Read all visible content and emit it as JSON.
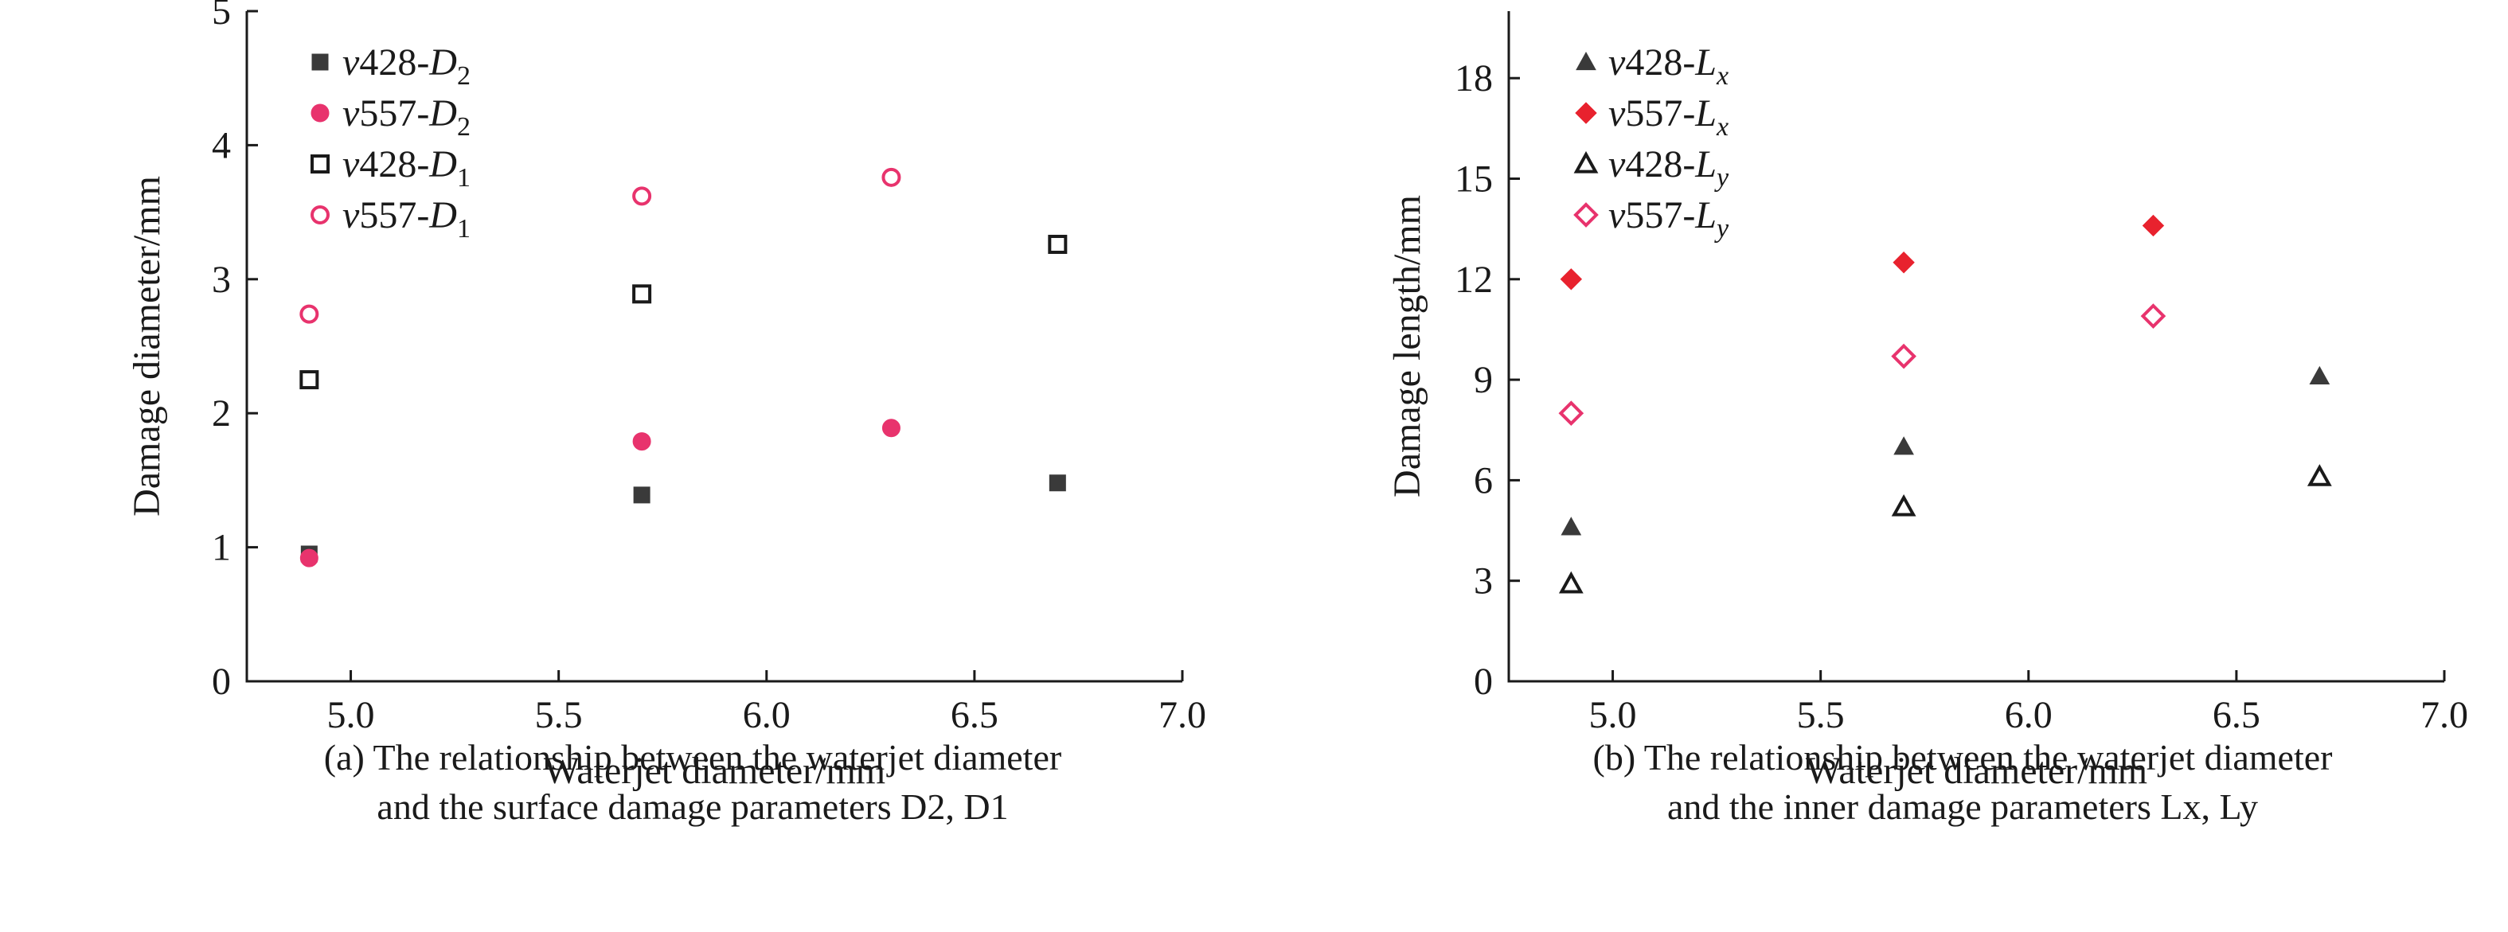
{
  "colors": {
    "dark": "#3a3a3a",
    "pink": "#e8336d",
    "red": "#e8222e",
    "axis": "#1a1a1a"
  },
  "chart_data": [
    {
      "type": "scatter",
      "panel": "a",
      "xlabel": "Waterjet diameter/mm",
      "ylabel": "Damage diameter/mm",
      "xlim": [
        4.75,
        7.0
      ],
      "ylim": [
        0,
        5
      ],
      "xticks": [
        "5.0",
        "5.5",
        "6.0",
        "6.5",
        "7.0"
      ],
      "yticks": [
        "0",
        "1",
        "2",
        "3",
        "4",
        "5"
      ],
      "grid": false,
      "legend_position": "top-left",
      "caption": [
        "(a) The relationship between the waterjet diameter",
        "and the surface damage parameters D2, D1"
      ],
      "series": [
        {
          "name": "v428-D2",
          "legend_parts": [
            "v",
            "428-",
            "D",
            "2"
          ],
          "marker": "square-filled",
          "color": "#3a3a3a",
          "x": [
            4.9,
            5.7,
            6.7
          ],
          "y": [
            0.95,
            1.39,
            1.48
          ]
        },
        {
          "name": "v557-D2",
          "legend_parts": [
            "v",
            "557-",
            "D",
            "2"
          ],
          "marker": "circle-filled",
          "color": "#e8336d",
          "x": [
            4.9,
            5.7,
            6.3
          ],
          "y": [
            0.92,
            1.79,
            1.89
          ]
        },
        {
          "name": "v428-D1",
          "legend_parts": [
            "v",
            "428-",
            "D",
            "1"
          ],
          "marker": "square-open",
          "color": "#1a1a1a",
          "x": [
            4.9,
            5.7,
            6.7
          ],
          "y": [
            2.25,
            2.89,
            3.26
          ]
        },
        {
          "name": "v557-D1",
          "legend_parts": [
            "v",
            "557-",
            "D",
            "1"
          ],
          "marker": "circle-open",
          "color": "#e8336d",
          "x": [
            4.9,
            5.7,
            6.3
          ],
          "y": [
            2.74,
            3.62,
            3.76
          ]
        }
      ]
    },
    {
      "type": "scatter",
      "panel": "b",
      "xlabel": "Waterjet diameter/mm",
      "ylabel": "Damage length/mm",
      "xlim": [
        4.75,
        7.0
      ],
      "ylim": [
        0,
        20
      ],
      "xticks": [
        "5.0",
        "5.5",
        "6.0",
        "6.5",
        "7.0"
      ],
      "yticks": [
        "0",
        "3",
        "6",
        "9",
        "12",
        "15",
        "18"
      ],
      "grid": false,
      "legend_position": "top-left",
      "caption": [
        "(b) The relationship between the waterjet diameter",
        "and the inner damage parameters Lx, Ly"
      ],
      "series": [
        {
          "name": "v428-Lx",
          "legend_parts": [
            "v",
            "428-",
            "L",
            "x"
          ],
          "marker": "triangle-filled",
          "color": "#3a3a3a",
          "x": [
            4.9,
            5.7,
            6.7
          ],
          "y": [
            4.6,
            7.0,
            9.1
          ]
        },
        {
          "name": "v557-Lx",
          "legend_parts": [
            "v",
            "557-",
            "L",
            "x"
          ],
          "marker": "diamond-filled",
          "color": "#e8222e",
          "x": [
            4.9,
            5.7,
            6.3
          ],
          "y": [
            12.0,
            12.5,
            13.6
          ]
        },
        {
          "name": "v428-Ly",
          "legend_parts": [
            "v",
            "428-",
            "L",
            "y"
          ],
          "marker": "triangle-open",
          "color": "#1a1a1a",
          "x": [
            4.9,
            5.7,
            6.7
          ],
          "y": [
            2.9,
            5.2,
            6.1
          ]
        },
        {
          "name": "v557-Ly",
          "legend_parts": [
            "v",
            "557-",
            "L",
            "y"
          ],
          "marker": "diamond-open",
          "color": "#e8336d",
          "x": [
            4.9,
            5.7,
            6.3
          ],
          "y": [
            8.0,
            9.7,
            10.9
          ]
        }
      ]
    }
  ]
}
